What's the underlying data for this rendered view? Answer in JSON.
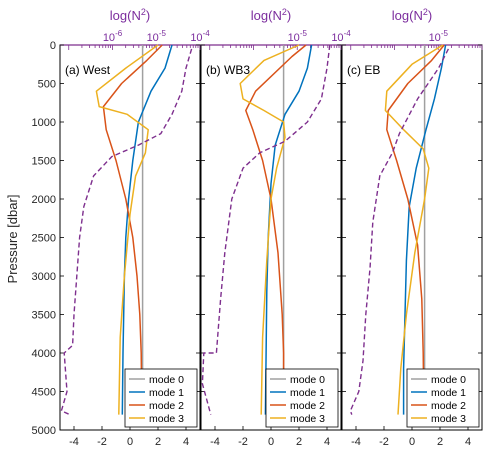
{
  "figure": {
    "ylabel": "Pressure [dbar]"
  },
  "chart_data": [
    {
      "type": "line",
      "panel_label": "(a) West",
      "top_axis_label": "log(N",
      "top_axis_label_sup": "2",
      "top_axis_label_end": ")",
      "top_ticks": [
        "10",
        "10",
        "10"
      ],
      "top_tick_exponents": [
        "-6",
        "-5",
        "-4"
      ],
      "top_tick_log_values": [
        -6,
        -5,
        -4
      ],
      "xlim": [
        -5,
        5
      ],
      "xticks": [
        -4,
        -2,
        0,
        2,
        4
      ],
      "xtick_labels": [
        "-4",
        "-2",
        "0",
        "2",
        "4"
      ],
      "ylim": [
        5000,
        0
      ],
      "yticks": [
        0,
        500,
        1000,
        1500,
        2000,
        2500,
        3000,
        3500,
        4000,
        4500,
        5000
      ],
      "ytick_labels": [
        "0",
        "500",
        "1000",
        "1500",
        "2000",
        "2500",
        "3000",
        "3500",
        "4000",
        "4500",
        "5000"
      ],
      "legend": {
        "position": "bottom-right",
        "entries": [
          "mode 0",
          "mode 1",
          "mode 2",
          "mode 3"
        ]
      },
      "series": [
        {
          "name": "mode 0",
          "color": "#a0a0a0",
          "dashed": false,
          "points": [
            [
              0.9,
              0
            ],
            [
              0.9,
              4800
            ]
          ]
        },
        {
          "name": "mode 1",
          "color": "#0072bd",
          "dashed": false,
          "points": [
            [
              3.0,
              0
            ],
            [
              2.5,
              300
            ],
            [
              1.5,
              600
            ],
            [
              0.6,
              1000
            ],
            [
              0.2,
              1500
            ],
            [
              -0.1,
              2000
            ],
            [
              -0.3,
              2500
            ],
            [
              -0.4,
              3000
            ],
            [
              -0.45,
              3500
            ],
            [
              -0.5,
              4000
            ],
            [
              -0.55,
              4800
            ]
          ]
        },
        {
          "name": "mode 2",
          "color": "#d95319",
          "dashed": false,
          "points": [
            [
              2.3,
              0
            ],
            [
              1.2,
              200
            ],
            [
              -0.6,
              500
            ],
            [
              -1.9,
              800
            ],
            [
              -1.7,
              1100
            ],
            [
              -1.0,
              1500
            ],
            [
              -0.3,
              2000
            ],
            [
              0.2,
              2500
            ],
            [
              0.5,
              3000
            ],
            [
              0.7,
              3500
            ],
            [
              0.8,
              4000
            ],
            [
              0.85,
              4800
            ]
          ]
        },
        {
          "name": "mode 3",
          "color": "#edb120",
          "dashed": false,
          "points": [
            [
              2.0,
              0
            ],
            [
              -0.3,
              300
            ],
            [
              -2.4,
              600
            ],
            [
              -2.2,
              800
            ],
            [
              -0.2,
              900
            ],
            [
              1.3,
              1100
            ],
            [
              1.1,
              1400
            ],
            [
              0.4,
              1700
            ],
            [
              0.0,
              2200
            ],
            [
              -0.4,
              3000
            ],
            [
              -0.7,
              3800
            ],
            [
              -0.8,
              4800
            ]
          ]
        },
        {
          "name": "log(N2)",
          "color": "#7e2f8e",
          "dashed": true,
          "points": [
            [
              4.4,
              50
            ],
            [
              4.0,
              300
            ],
            [
              3.7,
              600
            ],
            [
              3.0,
              900
            ],
            [
              2.2,
              1150
            ],
            [
              0.6,
              1300
            ],
            [
              -1.3,
              1450
            ],
            [
              -2.6,
              1700
            ],
            [
              -3.3,
              2100
            ],
            [
              -3.6,
              2500
            ],
            [
              -3.8,
              3000
            ],
            [
              -4.0,
              3500
            ],
            [
              -4.1,
              3900
            ],
            [
              -4.7,
              4000
            ],
            [
              -4.5,
              4500
            ],
            [
              -4.9,
              4750
            ],
            [
              -4.3,
              4800
            ]
          ]
        }
      ]
    },
    {
      "type": "line",
      "panel_label": "(b) WB3",
      "top_axis_label": "log(N",
      "top_axis_label_sup": "2",
      "top_axis_label_end": ")",
      "top_ticks": [
        "10",
        "10"
      ],
      "top_tick_exponents": [
        "-5",
        "-4"
      ],
      "top_tick_log_values": [
        -5,
        -4
      ],
      "xlim": [
        -5,
        5
      ],
      "xticks": [
        -4,
        -2,
        0,
        2,
        4
      ],
      "xtick_labels": [
        "-4",
        "-2",
        "0",
        "2",
        "4"
      ],
      "ylim": [
        5000,
        0
      ],
      "yticks": [
        0,
        500,
        1000,
        1500,
        2000,
        2500,
        3000,
        3500,
        4000,
        4500,
        5000
      ],
      "legend": {
        "position": "bottom-right",
        "entries": [
          "mode 0",
          "mode 1",
          "mode 2",
          "mode 3"
        ]
      },
      "series": [
        {
          "name": "mode 0",
          "color": "#a0a0a0",
          "dashed": false,
          "points": [
            [
              0.9,
              0
            ],
            [
              0.9,
              4800
            ]
          ]
        },
        {
          "name": "mode 1",
          "color": "#0072bd",
          "dashed": false,
          "points": [
            [
              2.9,
              0
            ],
            [
              2.6,
              300
            ],
            [
              2.0,
              600
            ],
            [
              1.0,
              900
            ],
            [
              0.3,
              1300
            ],
            [
              0.0,
              1800
            ],
            [
              -0.2,
              2500
            ],
            [
              -0.3,
              3200
            ],
            [
              -0.35,
              4000
            ],
            [
              -0.4,
              4800
            ]
          ]
        },
        {
          "name": "mode 2",
          "color": "#d95319",
          "dashed": false,
          "points": [
            [
              2.5,
              0
            ],
            [
              1.5,
              150
            ],
            [
              -1.1,
              600
            ],
            [
              -1.8,
              850
            ],
            [
              -1.3,
              1100
            ],
            [
              -0.6,
              1500
            ],
            [
              0.0,
              2000
            ],
            [
              0.5,
              2700
            ],
            [
              0.8,
              3500
            ],
            [
              0.9,
              4000
            ],
            [
              0.9,
              4800
            ]
          ]
        },
        {
          "name": "mode 3",
          "color": "#edb120",
          "dashed": false,
          "points": [
            [
              2.0,
              0
            ],
            [
              -0.5,
              200
            ],
            [
              -2.2,
              500
            ],
            [
              -2.0,
              700
            ],
            [
              -0.5,
              850
            ],
            [
              0.9,
              1000
            ],
            [
              1.0,
              1200
            ],
            [
              0.4,
              1600
            ],
            [
              0.0,
              2000
            ],
            [
              -0.3,
              2800
            ],
            [
              -0.6,
              3800
            ],
            [
              -0.7,
              4800
            ]
          ]
        },
        {
          "name": "log(N2)",
          "color": "#7e2f8e",
          "dashed": true,
          "points": [
            [
              4.2,
              0
            ],
            [
              4.0,
              300
            ],
            [
              3.6,
              700
            ],
            [
              2.6,
              1000
            ],
            [
              1.0,
              1250
            ],
            [
              -0.8,
              1400
            ],
            [
              -2.0,
              1600
            ],
            [
              -2.8,
              2000
            ],
            [
              -3.3,
              2700
            ],
            [
              -3.6,
              3300
            ],
            [
              -3.9,
              4000
            ],
            [
              -4.8,
              4000
            ],
            [
              -4.9,
              4400
            ],
            [
              -4.3,
              4800
            ]
          ]
        }
      ]
    },
    {
      "type": "line",
      "panel_label": "(c) EB",
      "top_axis_label": "log(N",
      "top_axis_label_sup": "2",
      "top_axis_label_end": ")",
      "top_ticks": [
        "10"
      ],
      "top_tick_exponents": [
        "-5"
      ],
      "top_tick_log_values": [
        -5
      ],
      "xlim": [
        -5,
        5
      ],
      "xticks": [
        -4,
        -2,
        0,
        2,
        4
      ],
      "xtick_labels": [
        "-4",
        "-2",
        "0",
        "2",
        "4"
      ],
      "ylim": [
        5000,
        0
      ],
      "yticks": [
        0,
        500,
        1000,
        1500,
        2000,
        2500,
        3000,
        3500,
        4000,
        4500,
        5000
      ],
      "legend": {
        "position": "bottom-right",
        "entries": [
          "mode 0",
          "mode 1",
          "mode 2",
          "mode 3"
        ]
      },
      "series": [
        {
          "name": "mode 0",
          "color": "#a0a0a0",
          "dashed": false,
          "points": [
            [
              0.9,
              0
            ],
            [
              0.9,
              4800
            ]
          ]
        },
        {
          "name": "mode 1",
          "color": "#0072bd",
          "dashed": false,
          "points": [
            [
              2.4,
              0
            ],
            [
              2.1,
              300
            ],
            [
              1.6,
              700
            ],
            [
              1.0,
              1100
            ],
            [
              0.3,
              1600
            ],
            [
              -0.2,
              2100
            ],
            [
              -0.4,
              2800
            ],
            [
              -0.5,
              3500
            ],
            [
              -0.6,
              4200
            ],
            [
              -0.6,
              4800
            ]
          ]
        },
        {
          "name": "mode 2",
          "color": "#d95319",
          "dashed": false,
          "points": [
            [
              2.3,
              0
            ],
            [
              1.4,
              200
            ],
            [
              -0.3,
              500
            ],
            [
              -1.7,
              850
            ],
            [
              -1.8,
              1100
            ],
            [
              -1.1,
              1500
            ],
            [
              -0.3,
              2000
            ],
            [
              0.4,
              2600
            ],
            [
              0.7,
              3300
            ],
            [
              0.8,
              4000
            ],
            [
              0.85,
              4800
            ]
          ]
        },
        {
          "name": "mode 3",
          "color": "#edb120",
          "dashed": false,
          "points": [
            [
              2.2,
              0
            ],
            [
              0.0,
              250
            ],
            [
              -1.8,
              600
            ],
            [
              -1.9,
              850
            ],
            [
              -0.6,
              1100
            ],
            [
              0.8,
              1350
            ],
            [
              1.2,
              1600
            ],
            [
              0.9,
              2000
            ],
            [
              0.2,
              2700
            ],
            [
              -0.4,
              3500
            ],
            [
              -0.8,
              4200
            ],
            [
              -1.0,
              4800
            ]
          ]
        },
        {
          "name": "log(N2)",
          "color": "#7e2f8e",
          "dashed": true,
          "points": [
            [
              2.6,
              50
            ],
            [
              1.9,
              300
            ],
            [
              0.4,
              700
            ],
            [
              -0.9,
              1150
            ],
            [
              -1.4,
              1400
            ],
            [
              -2.3,
              1700
            ],
            [
              -2.8,
              2300
            ],
            [
              -3.0,
              2900
            ],
            [
              -3.3,
              3500
            ],
            [
              -3.5,
              4100
            ],
            [
              -3.8,
              4500
            ],
            [
              -4.4,
              4750
            ],
            [
              -4.3,
              4800
            ]
          ]
        }
      ]
    }
  ]
}
